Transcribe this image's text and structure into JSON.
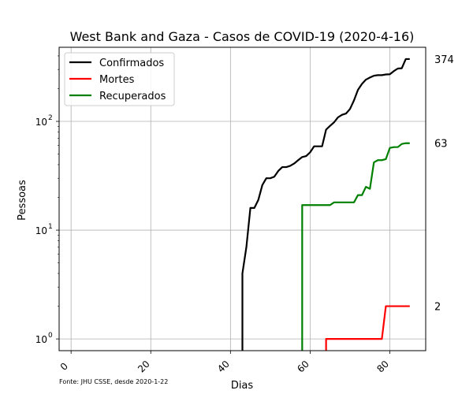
{
  "chart_data": {
    "type": "line",
    "title": "West Bank and Gaza - Casos de COVID-19 (2020-4-16)",
    "xlabel": "Dias",
    "ylabel": "Pessoas",
    "yscale": "log",
    "xlim": [
      -3,
      89
    ],
    "ylim": [
      0.78,
      480
    ],
    "grid": true,
    "legend_position": "top-left",
    "x_ticks": [
      0,
      20,
      40,
      60,
      80
    ],
    "x_tick_labels": [
      "0",
      "20",
      "40",
      "60",
      "80"
    ],
    "y_ticks": [
      1,
      10,
      100
    ],
    "y_tick_labels": [
      "10",
      "10",
      "10"
    ],
    "y_tick_exponents": [
      "0",
      "1",
      "2"
    ],
    "footnote": "Fonte: JHU CSSE, desde 2020-1-22",
    "series": [
      {
        "name": "Confirmados",
        "color": "#000000",
        "end_label": "374",
        "points": [
          [
            43,
            0.5
          ],
          [
            43,
            4
          ],
          [
            44,
            7
          ],
          [
            45,
            16
          ],
          [
            46,
            16
          ],
          [
            47,
            19
          ],
          [
            48,
            26
          ],
          [
            49,
            30
          ],
          [
            50,
            30
          ],
          [
            51,
            31
          ],
          [
            52,
            35
          ],
          [
            53,
            38
          ],
          [
            54,
            38
          ],
          [
            55,
            39
          ],
          [
            56,
            41
          ],
          [
            57,
            44
          ],
          [
            58,
            47
          ],
          [
            59,
            48
          ],
          [
            60,
            52
          ],
          [
            61,
            59
          ],
          [
            62,
            59
          ],
          [
            63,
            59
          ],
          [
            64,
            84
          ],
          [
            65,
            91
          ],
          [
            66,
            98
          ],
          [
            67,
            109
          ],
          [
            68,
            115
          ],
          [
            69,
            118
          ],
          [
            70,
            130
          ],
          [
            71,
            156
          ],
          [
            72,
            195
          ],
          [
            73,
            221
          ],
          [
            74,
            242
          ],
          [
            75,
            253
          ],
          [
            76,
            263
          ],
          [
            77,
            266
          ],
          [
            78,
            266
          ],
          [
            79,
            270
          ],
          [
            80,
            271
          ],
          [
            81,
            290
          ],
          [
            82,
            306
          ],
          [
            83,
            308
          ],
          [
            84,
            374
          ],
          [
            85,
            374
          ]
        ]
      },
      {
        "name": "Mortes",
        "color": "#ff0000",
        "end_label": "2",
        "points": [
          [
            64,
            0.5
          ],
          [
            64,
            1
          ],
          [
            65,
            1
          ],
          [
            66,
            1
          ],
          [
            67,
            1
          ],
          [
            68,
            1
          ],
          [
            69,
            1
          ],
          [
            70,
            1
          ],
          [
            71,
            1
          ],
          [
            72,
            1
          ],
          [
            73,
            1
          ],
          [
            74,
            1
          ],
          [
            75,
            1
          ],
          [
            76,
            1
          ],
          [
            77,
            1
          ],
          [
            78,
            1
          ],
          [
            79,
            2
          ],
          [
            80,
            2
          ],
          [
            81,
            2
          ],
          [
            82,
            2
          ],
          [
            83,
            2
          ],
          [
            84,
            2
          ],
          [
            85,
            2
          ]
        ]
      },
      {
        "name": "Recuperados",
        "color": "#008000",
        "end_label": "63",
        "points": [
          [
            58,
            0.5
          ],
          [
            58,
            17
          ],
          [
            59,
            17
          ],
          [
            60,
            17
          ],
          [
            61,
            17
          ],
          [
            62,
            17
          ],
          [
            63,
            17
          ],
          [
            64,
            17
          ],
          [
            65,
            17
          ],
          [
            66,
            18
          ],
          [
            67,
            18
          ],
          [
            68,
            18
          ],
          [
            69,
            18
          ],
          [
            70,
            18
          ],
          [
            71,
            18
          ],
          [
            72,
            21
          ],
          [
            73,
            21
          ],
          [
            74,
            25
          ],
          [
            75,
            24
          ],
          [
            76,
            42
          ],
          [
            77,
            44
          ],
          [
            78,
            44
          ],
          [
            79,
            45
          ],
          [
            80,
            57
          ],
          [
            81,
            58
          ],
          [
            82,
            58
          ],
          [
            83,
            62
          ],
          [
            84,
            63
          ],
          [
            85,
            63
          ]
        ]
      }
    ]
  }
}
